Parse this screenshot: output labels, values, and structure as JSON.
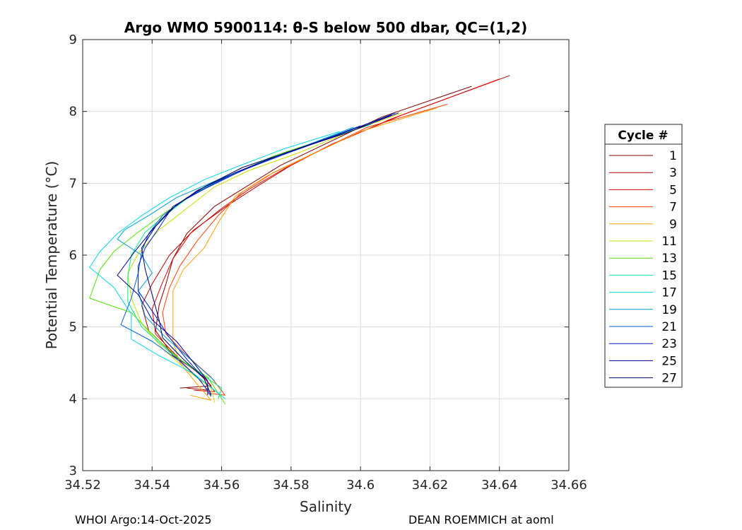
{
  "chart_data": {
    "type": "line",
    "title": "Argo WMO 5900114: θ-S below 500 dbar,  QC=(1,2)",
    "xlabel": "Salinity",
    "ylabel": "Potential Temperature (°C)",
    "xlim": [
      34.52,
      34.66
    ],
    "ylim": [
      3,
      9
    ],
    "xticks": [
      "34.52",
      "34.54",
      "34.56",
      "34.58",
      "34.6",
      "34.62",
      "34.64",
      "34.66"
    ],
    "yticks": [
      "3",
      "4",
      "5",
      "6",
      "7",
      "8",
      "9"
    ],
    "grid": true,
    "legend": {
      "title": "Cycle #",
      "position": "outside-right",
      "entries": [
        "1",
        "3",
        "5",
        "7",
        "9",
        "11",
        "13",
        "15",
        "17",
        "19",
        "21",
        "23",
        "25",
        "27"
      ]
    },
    "series": [
      {
        "name": "1",
        "color": "#800000",
        "points": [
          [
            34.632,
            8.35
          ],
          [
            34.606,
            7.92
          ],
          [
            34.59,
            7.55
          ],
          [
            34.577,
            7.25
          ],
          [
            34.567,
            6.95
          ],
          [
            34.558,
            6.68
          ],
          [
            34.55,
            6.3
          ],
          [
            34.546,
            5.95
          ],
          [
            34.544,
            5.6
          ],
          [
            34.542,
            5.3
          ],
          [
            34.541,
            4.95
          ],
          [
            34.546,
            4.6
          ],
          [
            34.554,
            4.35
          ],
          [
            34.557,
            4.18
          ],
          [
            34.548,
            4.15
          ]
        ]
      },
      {
        "name": "3",
        "color": "#b40000",
        "points": [
          [
            34.643,
            8.5
          ],
          [
            34.612,
            7.95
          ],
          [
            34.592,
            7.55
          ],
          [
            34.58,
            7.25
          ],
          [
            34.57,
            6.95
          ],
          [
            34.562,
            6.7
          ],
          [
            34.552,
            6.35
          ],
          [
            34.545,
            6.0
          ],
          [
            34.54,
            5.6
          ],
          [
            34.537,
            5.3
          ],
          [
            34.539,
            4.95
          ],
          [
            34.546,
            4.62
          ],
          [
            34.553,
            4.3
          ],
          [
            34.556,
            4.12
          ],
          [
            34.55,
            4.15
          ]
        ]
      },
      {
        "name": "5",
        "color": "#e00000",
        "points": [
          [
            34.64,
            8.45
          ],
          [
            34.608,
            7.88
          ],
          [
            34.59,
            7.5
          ],
          [
            34.578,
            7.2
          ],
          [
            34.568,
            6.92
          ],
          [
            34.56,
            6.65
          ],
          [
            34.551,
            6.3
          ],
          [
            34.546,
            5.95
          ],
          [
            34.543,
            5.62
          ],
          [
            34.54,
            5.25
          ],
          [
            34.541,
            4.9
          ],
          [
            34.548,
            4.55
          ],
          [
            34.555,
            4.3
          ],
          [
            34.558,
            4.1
          ],
          [
            34.552,
            4.12
          ]
        ]
      },
      {
        "name": "7",
        "color": "#ff3c00",
        "points": [
          [
            34.625,
            8.1
          ],
          [
            34.602,
            7.78
          ],
          [
            34.588,
            7.45
          ],
          [
            34.575,
            7.15
          ],
          [
            34.566,
            6.88
          ],
          [
            34.559,
            6.55
          ],
          [
            34.553,
            6.2
          ],
          [
            34.548,
            5.85
          ],
          [
            34.545,
            5.55
          ],
          [
            34.543,
            5.2
          ],
          [
            34.544,
            4.9
          ],
          [
            34.55,
            4.6
          ],
          [
            34.557,
            4.3
          ],
          [
            34.561,
            4.05
          ],
          [
            34.556,
            4.08
          ]
        ]
      },
      {
        "name": "9",
        "color": "#ffa000",
        "points": [
          [
            34.622,
            8.05
          ],
          [
            34.6,
            7.72
          ],
          [
            34.586,
            7.4
          ],
          [
            34.573,
            7.1
          ],
          [
            34.564,
            6.82
          ],
          [
            34.559,
            6.45
          ],
          [
            34.555,
            6.1
          ],
          [
            34.549,
            5.8
          ],
          [
            34.546,
            5.5
          ],
          [
            34.546,
            5.1
          ],
          [
            34.546,
            4.8
          ],
          [
            34.548,
            4.5
          ],
          [
            34.553,
            4.2
          ],
          [
            34.557,
            3.98
          ],
          [
            34.551,
            4.05
          ]
        ]
      },
      {
        "name": "11",
        "color": "#c8e000",
        "points": [
          [
            34.612,
            7.98
          ],
          [
            34.596,
            7.7
          ],
          [
            34.582,
            7.42
          ],
          [
            34.568,
            7.18
          ],
          [
            34.558,
            6.95
          ],
          [
            34.55,
            6.65
          ],
          [
            34.542,
            6.35
          ],
          [
            34.536,
            6.02
          ],
          [
            34.533,
            5.75
          ],
          [
            34.534,
            5.4
          ],
          [
            34.537,
            5.05
          ],
          [
            34.543,
            4.7
          ],
          [
            34.55,
            4.4
          ],
          [
            34.557,
            4.15
          ],
          [
            34.558,
            3.95
          ]
        ]
      },
      {
        "name": "13",
        "color": "#50e000",
        "points": [
          [
            34.605,
            7.88
          ],
          [
            34.59,
            7.62
          ],
          [
            34.575,
            7.38
          ],
          [
            34.563,
            7.12
          ],
          [
            34.553,
            6.88
          ],
          [
            34.544,
            6.6
          ],
          [
            34.536,
            6.32
          ],
          [
            34.529,
            6.05
          ],
          [
            34.525,
            5.8
          ],
          [
            34.522,
            5.4
          ],
          [
            34.534,
            5.2
          ],
          [
            34.541,
            4.85
          ],
          [
            34.548,
            4.55
          ],
          [
            34.556,
            4.3
          ],
          [
            34.561,
            3.93
          ]
        ]
      },
      {
        "name": "15",
        "color": "#00e890",
        "points": [
          [
            34.603,
            7.82
          ],
          [
            34.588,
            7.58
          ],
          [
            34.574,
            7.35
          ],
          [
            34.562,
            7.1
          ],
          [
            34.552,
            6.86
          ],
          [
            34.545,
            6.6
          ],
          [
            34.538,
            6.32
          ],
          [
            34.534,
            6.0
          ],
          [
            34.533,
            5.7
          ],
          [
            34.533,
            5.35
          ],
          [
            34.537,
            5.0
          ],
          [
            34.545,
            4.65
          ],
          [
            34.553,
            4.38
          ],
          [
            34.56,
            4.15
          ],
          [
            34.559,
            4.0
          ]
        ]
      },
      {
        "name": "17",
        "color": "#00d8e8",
        "points": [
          [
            34.594,
            7.72
          ],
          [
            34.578,
            7.48
          ],
          [
            34.566,
            7.26
          ],
          [
            34.555,
            7.05
          ],
          [
            34.545,
            6.8
          ],
          [
            34.537,
            6.55
          ],
          [
            34.53,
            6.3
          ],
          [
            34.525,
            6.05
          ],
          [
            34.522,
            5.83
          ],
          [
            34.529,
            5.55
          ],
          [
            34.534,
            5.18
          ],
          [
            34.534,
            4.83
          ],
          [
            34.542,
            4.6
          ],
          [
            34.552,
            4.35
          ],
          [
            34.561,
            4.0
          ]
        ]
      },
      {
        "name": "19",
        "color": "#00a0d8",
        "points": [
          [
            34.598,
            7.78
          ],
          [
            34.584,
            7.52
          ],
          [
            34.571,
            7.28
          ],
          [
            34.559,
            7.05
          ],
          [
            34.547,
            6.8
          ],
          [
            34.539,
            6.55
          ],
          [
            34.532,
            6.35
          ],
          [
            34.53,
            6.22
          ],
          [
            34.537,
            6.0
          ],
          [
            34.54,
            5.75
          ],
          [
            34.536,
            5.5
          ],
          [
            34.538,
            5.15
          ],
          [
            34.544,
            4.85
          ],
          [
            34.551,
            4.55
          ],
          [
            34.558,
            4.25
          ]
        ]
      },
      {
        "name": "21",
        "color": "#0060d8",
        "points": [
          [
            34.6,
            7.8
          ],
          [
            34.586,
            7.55
          ],
          [
            34.572,
            7.3
          ],
          [
            34.56,
            7.05
          ],
          [
            34.55,
            6.8
          ],
          [
            34.543,
            6.55
          ],
          [
            34.539,
            6.3
          ],
          [
            34.537,
            6.05
          ],
          [
            34.536,
            5.75
          ],
          [
            34.534,
            5.4
          ],
          [
            34.531,
            5.03
          ],
          [
            34.54,
            4.8
          ],
          [
            34.548,
            4.52
          ],
          [
            34.554,
            4.25
          ],
          [
            34.557,
            4.03
          ]
        ]
      },
      {
        "name": "23",
        "color": "#0020c8",
        "points": [
          [
            34.61,
            7.98
          ],
          [
            34.594,
            7.68
          ],
          [
            34.579,
            7.42
          ],
          [
            34.566,
            7.18
          ],
          [
            34.555,
            6.92
          ],
          [
            34.546,
            6.68
          ],
          [
            34.542,
            6.38
          ],
          [
            34.538,
            6.1
          ],
          [
            34.536,
            5.85
          ],
          [
            34.536,
            5.5
          ],
          [
            34.541,
            5.15
          ],
          [
            34.545,
            4.85
          ],
          [
            34.55,
            4.55
          ],
          [
            34.555,
            4.28
          ],
          [
            34.557,
            4.05
          ]
        ]
      },
      {
        "name": "25",
        "color": "#000098",
        "points": [
          [
            34.609,
            7.95
          ],
          [
            34.592,
            7.65
          ],
          [
            34.577,
            7.4
          ],
          [
            34.564,
            7.15
          ],
          [
            34.553,
            6.9
          ],
          [
            34.545,
            6.62
          ],
          [
            34.54,
            6.35
          ],
          [
            34.535,
            6.05
          ],
          [
            34.53,
            5.72
          ],
          [
            34.536,
            5.45
          ],
          [
            34.54,
            5.1
          ],
          [
            34.547,
            4.8
          ],
          [
            34.552,
            4.5
          ],
          [
            34.556,
            4.25
          ],
          [
            34.556,
            4.05
          ]
        ]
      },
      {
        "name": "27",
        "color": "#000060",
        "points": [
          [
            34.611,
            7.98
          ],
          [
            34.596,
            7.7
          ],
          [
            34.58,
            7.45
          ],
          [
            34.566,
            7.22
          ],
          [
            34.555,
            6.95
          ],
          [
            34.547,
            6.7
          ],
          [
            34.541,
            6.4
          ],
          [
            34.537,
            6.1
          ],
          [
            34.538,
            5.8
          ],
          [
            34.54,
            5.45
          ],
          [
            34.542,
            5.1
          ],
          [
            34.543,
            4.85
          ],
          [
            34.549,
            4.55
          ],
          [
            34.555,
            4.28
          ],
          [
            34.557,
            4.05
          ]
        ]
      }
    ]
  },
  "footer": {
    "left": "WHOI Argo:14-Oct-2025",
    "right": "DEAN ROEMMICH at aoml"
  }
}
